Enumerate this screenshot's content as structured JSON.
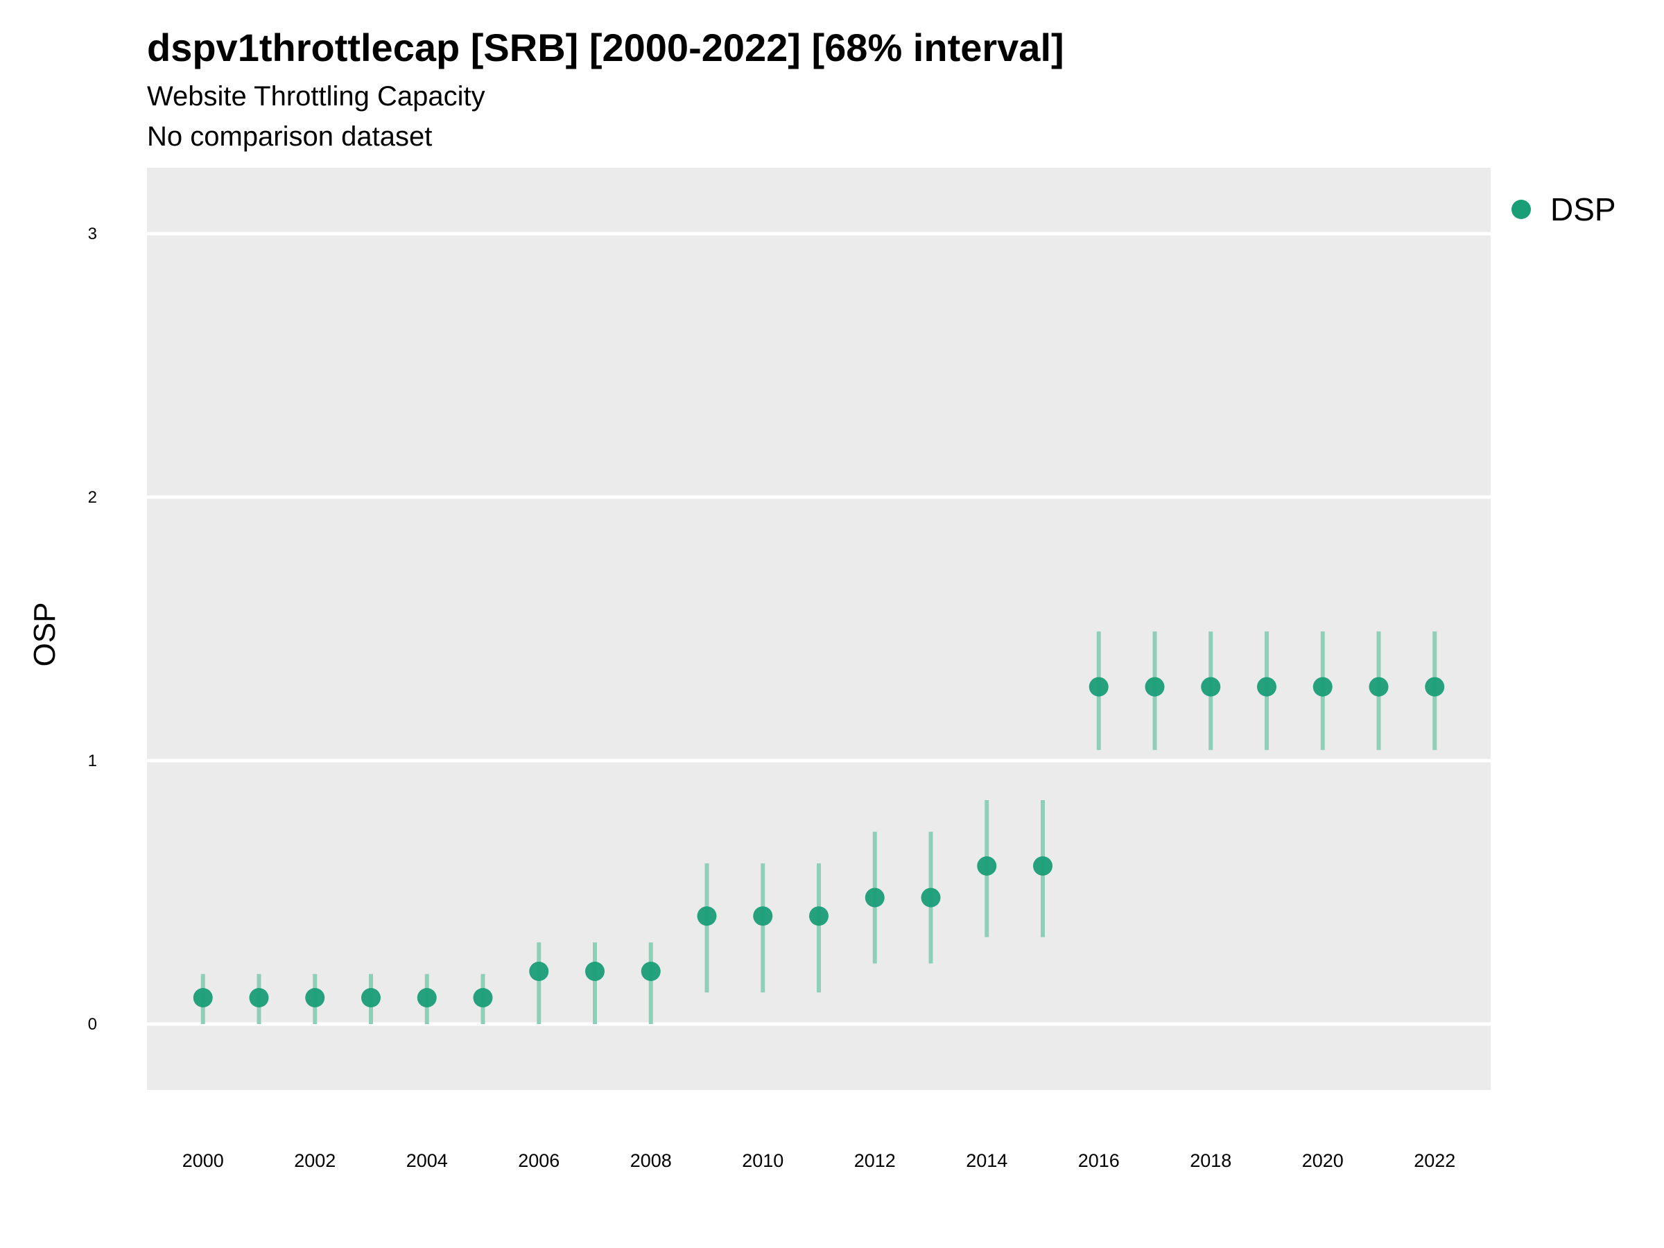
{
  "chart_data": {
    "type": "scatter",
    "title": "dspv1throttlecap [SRB] [2000-2022] [68% interval]",
    "subtitle": "Website Throttling Capacity",
    "subtitle2": "No comparison dataset",
    "xlabel": "",
    "ylabel": "OSP",
    "xlim": [
      1999,
      2023
    ],
    "ylim": [
      -0.25,
      3.25
    ],
    "x_ticks": [
      "2000",
      "2002",
      "2004",
      "2006",
      "2008",
      "2010",
      "2012",
      "2014",
      "2016",
      "2018",
      "2020",
      "2022"
    ],
    "y_ticks": [
      "0",
      "1",
      "2",
      "3"
    ],
    "grid": true,
    "legend_position": "right",
    "series": [
      {
        "name": "DSP",
        "color": "#1a9e77",
        "x": [
          2000,
          2001,
          2002,
          2003,
          2004,
          2005,
          2006,
          2007,
          2008,
          2009,
          2010,
          2011,
          2012,
          2013,
          2014,
          2015,
          2016,
          2017,
          2018,
          2019,
          2020,
          2021,
          2022
        ],
        "y": [
          0.1,
          0.1,
          0.1,
          0.1,
          0.1,
          0.1,
          0.2,
          0.2,
          0.2,
          0.41,
          0.41,
          0.41,
          0.48,
          0.48,
          0.6,
          0.6,
          1.28,
          1.28,
          1.28,
          1.28,
          1.28,
          1.28,
          1.28
        ],
        "lower": [
          0.0,
          0.0,
          0.0,
          0.0,
          0.0,
          0.0,
          0.0,
          0.0,
          0.0,
          0.12,
          0.12,
          0.12,
          0.23,
          0.23,
          0.33,
          0.33,
          1.04,
          1.04,
          1.04,
          1.04,
          1.04,
          1.04,
          1.04
        ],
        "upper": [
          0.19,
          0.19,
          0.19,
          0.19,
          0.19,
          0.19,
          0.31,
          0.31,
          0.31,
          0.61,
          0.61,
          0.61,
          0.73,
          0.73,
          0.85,
          0.85,
          1.49,
          1.49,
          1.49,
          1.49,
          1.49,
          1.49,
          1.49
        ]
      }
    ]
  },
  "legend": {
    "label": "DSP"
  },
  "colors": {
    "panel": "#ebebeb",
    "grid": "#ffffff",
    "point": "#1a9e77",
    "interval": "#8fcfb8"
  }
}
